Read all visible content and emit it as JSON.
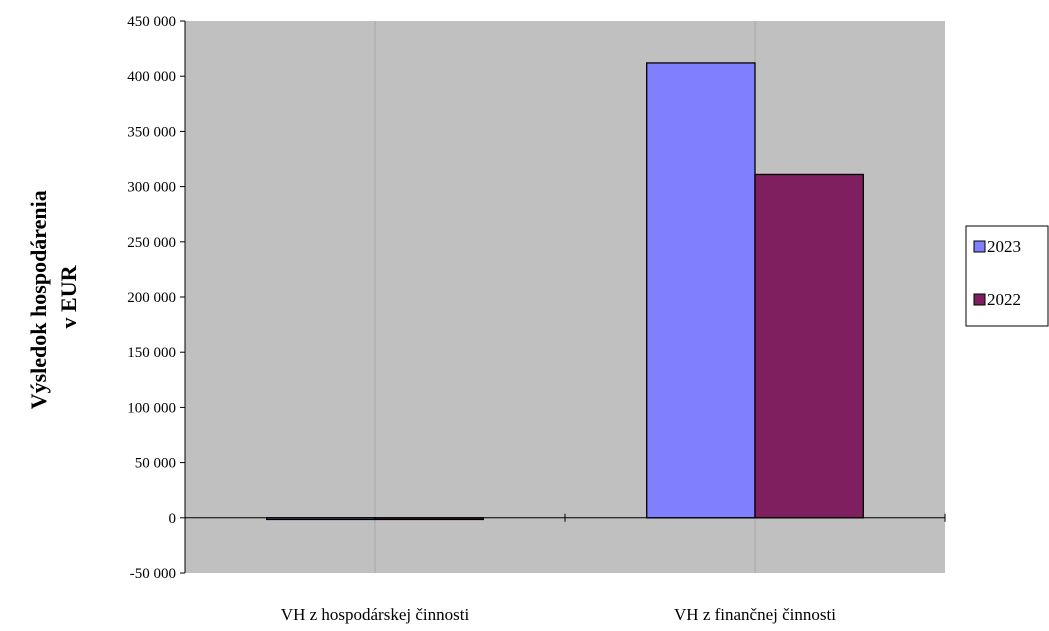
{
  "chart_data": {
    "type": "bar",
    "title": "",
    "xlabel": "",
    "ylabel": [
      "Výsledok hospodárenia",
      "v EUR"
    ],
    "categories": [
      "VH z hospodárskej činnosti",
      "VH z finančnej činnosti"
    ],
    "series": [
      {
        "name": "2023",
        "values": [
          -1500,
          412000
        ],
        "color": "#8080FF"
      },
      {
        "name": "2022",
        "values": [
          -1500,
          311000
        ],
        "color": "#7F1F5F"
      }
    ],
    "ylim": [
      -50000,
      450000
    ],
    "yticks": [
      450000,
      400000,
      350000,
      300000,
      250000,
      200000,
      150000,
      100000,
      50000,
      0,
      -50000
    ],
    "ytick_labels": [
      "450 000",
      "400 000",
      "350 000",
      "300 000",
      "250 000",
      "200 000",
      "150 000",
      "100 000",
      "50 000",
      "0",
      "-50 000"
    ],
    "plot_background": "#C0C0C0",
    "grid": "vertical",
    "legend_position": "right"
  }
}
